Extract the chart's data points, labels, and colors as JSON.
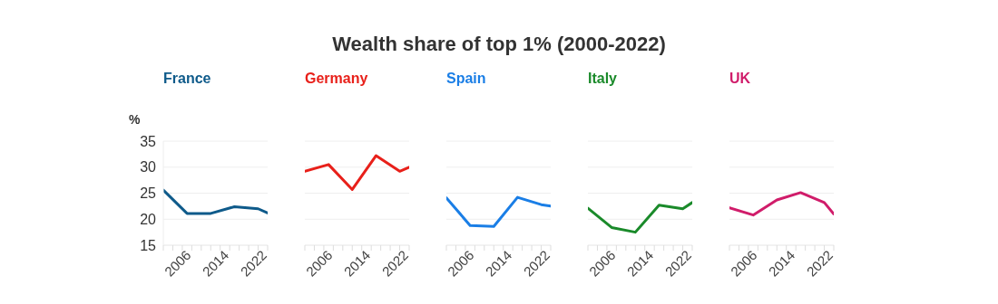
{
  "chart_data": [
    {
      "type": "line",
      "ylabel": "%",
      "x": [
        2000,
        2005,
        2010,
        2015,
        2020,
        2022
      ],
      "series": [
        {
          "name": "France",
          "color": "#0e5a8a",
          "values": [
            25.6,
            21.1,
            21.1,
            22.4,
            22.0,
            21.2
          ]
        }
      ],
      "xlim": [
        2000,
        2022
      ],
      "xticks": [
        {
          "value": 2000,
          "label": null
        },
        {
          "value": 2002,
          "label": null
        },
        {
          "value": 2004,
          "label": null
        },
        2006,
        {
          "value": 2008,
          "label": null
        },
        {
          "value": 2010,
          "label": null
        },
        {
          "value": 2012,
          "label": null
        },
        2014,
        {
          "value": 2016,
          "label": null
        },
        {
          "value": 2018,
          "label": null
        },
        {
          "value": 2020,
          "label": null
        },
        2022
      ],
      "ylim": [
        15,
        35
      ],
      "yticks": [
        15,
        20,
        25,
        30,
        35
      ],
      "grid": "y",
      "marker": "none",
      "line_style": "solid",
      "legend": false
    },
    {
      "type": "line",
      "x": [
        2000,
        2005,
        2010,
        2015,
        2020,
        2022
      ],
      "series": [
        {
          "name": "Germany",
          "color": "#e8201a",
          "values": [
            29.2,
            30.5,
            25.7,
            32.2,
            29.2,
            30.0
          ]
        }
      ],
      "xlim": [
        2000,
        2022
      ],
      "xticks": [
        {
          "value": 2000,
          "label": null
        },
        {
          "value": 2002,
          "label": null
        },
        {
          "value": 2004,
          "label": null
        },
        2006,
        {
          "value": 2008,
          "label": null
        },
        {
          "value": 2010,
          "label": null
        },
        {
          "value": 2012,
          "label": null
        },
        2014,
        {
          "value": 2016,
          "label": null
        },
        {
          "value": 2018,
          "label": null
        },
        {
          "value": 2020,
          "label": null
        },
        2022
      ],
      "ylim": [
        15,
        35
      ],
      "yticks": [
        15,
        20,
        25,
        30,
        35
      ],
      "grid": "y",
      "marker": "none",
      "line_style": "solid",
      "legend": false,
      "tick_labels": "x"
    },
    {
      "type": "line",
      "x": [
        2000,
        2005,
        2010,
        2015,
        2020,
        2022
      ],
      "title": "Wealth share of top 1% (2000-2022)",
      "series": [
        {
          "name": "Spain",
          "color": "#1a7ee6",
          "values": [
            24.1,
            18.8,
            18.6,
            24.2,
            22.8,
            22.5
          ]
        }
      ],
      "xlim": [
        2000,
        2022
      ],
      "xticks": [
        {
          "value": 2000,
          "label": null
        },
        {
          "value": 2002,
          "label": null
        },
        {
          "value": 2004,
          "label": null
        },
        2006,
        {
          "value": 2008,
          "label": null
        },
        {
          "value": 2010,
          "label": null
        },
        {
          "value": 2012,
          "label": null
        },
        2014,
        {
          "value": 2016,
          "label": null
        },
        {
          "value": 2018,
          "label": null
        },
        {
          "value": 2020,
          "label": null
        },
        2022
      ],
      "ylim": [
        15,
        35
      ],
      "yticks": [
        15,
        20,
        25,
        30,
        35
      ],
      "grid": "y",
      "marker": "none",
      "line_style": "solid",
      "legend": false,
      "tick_labels": "x"
    },
    {
      "type": "line",
      "x": [
        2000,
        2005,
        2010,
        2015,
        2020,
        2022
      ],
      "series": [
        {
          "name": "Italy",
          "color": "#1a8a2a",
          "values": [
            22.1,
            18.4,
            17.5,
            22.7,
            22.0,
            23.2
          ]
        }
      ],
      "xlim": [
        2000,
        2022
      ],
      "xticks": [
        {
          "value": 2000,
          "label": null
        },
        {
          "value": 2002,
          "label": null
        },
        {
          "value": 2004,
          "label": null
        },
        2006,
        {
          "value": 2008,
          "label": null
        },
        {
          "value": 2010,
          "label": null
        },
        {
          "value": 2012,
          "label": null
        },
        2014,
        {
          "value": 2016,
          "label": null
        },
        {
          "value": 2018,
          "label": null
        },
        {
          "value": 2020,
          "label": null
        },
        2022
      ],
      "ylim": [
        15,
        35
      ],
      "yticks": [
        15,
        20,
        25,
        30,
        35
      ],
      "grid": "y",
      "marker": "none",
      "line_style": "solid",
      "legend": false,
      "tick_labels": "x"
    },
    {
      "type": "line",
      "x": [
        2000,
        2005,
        2010,
        2015,
        2020,
        2022
      ],
      "series": [
        {
          "name": "UK",
          "color": "#d01c6a",
          "values": [
            22.2,
            20.8,
            23.7,
            25.1,
            23.2,
            21.0
          ]
        }
      ],
      "xlim": [
        2000,
        2022
      ],
      "xticks": [
        {
          "value": 2000,
          "label": null
        },
        {
          "value": 2002,
          "label": null
        },
        {
          "value": 2004,
          "label": null
        },
        2006,
        {
          "value": 2008,
          "label": null
        },
        {
          "value": 2010,
          "label": null
        },
        {
          "value": 2012,
          "label": null
        },
        2014,
        {
          "value": 2016,
          "label": null
        },
        {
          "value": 2018,
          "label": null
        },
        {
          "value": 2020,
          "label": null
        },
        2022
      ],
      "ylim": [
        15,
        35
      ],
      "yticks": [
        15,
        20,
        25,
        30,
        35
      ],
      "grid": "y",
      "marker": "none",
      "line_style": "solid",
      "legend": false,
      "tick_labels": "x"
    }
  ]
}
